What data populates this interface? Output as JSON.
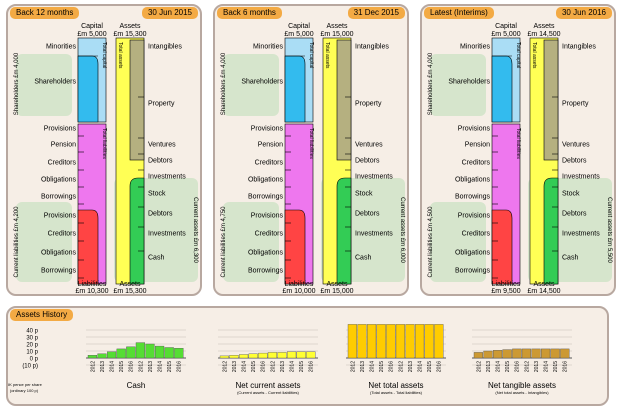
{
  "panels": [
    {
      "period": "Back 12 months",
      "date": "30 Jun 2015",
      "capital_label": "Capital",
      "capital_amount": "£m 5,000",
      "assets_label": "Assets",
      "assets_amount": "£m 15,300",
      "liabilities_label": "Liabilities",
      "liabilities_amount": "£m 10,300",
      "assets_bottom_label": "Assets",
      "assets_bottom_amount": "£m 15,300",
      "shareholders_axis": "Shareholders £m 4,000",
      "current_liabilities_axis": "Current liabilities £m 4,200",
      "current_assets_axis": "Current assets £m 6,300",
      "total_capital": "Total capital",
      "total_liabilities": "Total liabilities",
      "total_assets": "Total assets",
      "left_labels": [
        "Minorities",
        "Shareholders",
        "Provisions",
        "Pension",
        "Creditors",
        "Obligations",
        "Borrowings",
        "Provisions",
        "Creditors",
        "Obligations",
        "Borrowings"
      ],
      "right_labels": [
        "Intangibles",
        "Property",
        "Ventures",
        "Debtors",
        "Investments",
        "Stock",
        "Debtors",
        "Investments",
        "Cash"
      ]
    },
    {
      "period": "Back 6 months",
      "date": "31 Dec 2015",
      "capital_label": "Capital",
      "capital_amount": "£m 5,000",
      "assets_label": "Assets",
      "assets_amount": "£m 15,000",
      "liabilities_label": "Liabilities",
      "liabilities_amount": "£m 10,000",
      "assets_bottom_label": "Assets",
      "assets_bottom_amount": "£m 15,000",
      "shareholders_axis": "Shareholders £m 4,000",
      "current_liabilities_axis": "Current liabilities £m 4,750",
      "current_assets_axis": "Current assets £m 6,000",
      "total_capital": "Total capital",
      "total_liabilities": "Total liabilities",
      "total_assets": "Total assets",
      "left_labels": [
        "Minorities",
        "Shareholders",
        "Provisions",
        "Pension",
        "Creditors",
        "Obligations",
        "Borrowings",
        "Provisions",
        "Creditors",
        "Obligations",
        "Borrowings"
      ],
      "right_labels": [
        "Intangibles",
        "Property",
        "Ventures",
        "Debtors",
        "Investments",
        "Stock",
        "Debtors",
        "Investments",
        "Cash"
      ]
    },
    {
      "period": "Latest (Interims)",
      "date": "30 Jun 2016",
      "capital_label": "Capital",
      "capital_amount": "£m 5,000",
      "assets_label": "Assets",
      "assets_amount": "£m 14,500",
      "liabilities_label": "Liabilities",
      "liabilities_amount": "£m 9,500",
      "assets_bottom_label": "Assets",
      "assets_bottom_amount": "£m 14,500",
      "shareholders_axis": "Shareholders £m 4,000",
      "current_liabilities_axis": "Current liabilities £m 4,500",
      "current_assets_axis": "Current assets £m 5,500",
      "total_capital": "Total capital",
      "total_liabilities": "Total liabilities",
      "total_assets": "Total assets",
      "left_labels": [
        "Minorities",
        "Shareholders",
        "Provisions",
        "Pension",
        "Creditors",
        "Obligations",
        "Borrowings",
        "Provisions",
        "Creditors",
        "Obligations",
        "Borrowings"
      ],
      "right_labels": [
        "Intangibles",
        "Property",
        "Ventures",
        "Debtors",
        "Investments",
        "Stock",
        "Debtors",
        "Investments",
        "Cash"
      ]
    }
  ],
  "history": {
    "title": "Assets History",
    "y_ticks": [
      "40 p",
      "30 p",
      "20 p",
      "10 p",
      "0 p",
      "(10 p)"
    ],
    "footnote_line1": "UK pence per share",
    "footnote_line2": "(ordinary 100 p)"
  },
  "colors": {
    "capital": "#33bbee",
    "capital_light": "#aaddf5",
    "liabilities": "#ee77ee",
    "liab_current": "#ff4444",
    "assets": "#ffff55",
    "assets_current": "#33cc55",
    "green_zone": "#d6e5cc",
    "panel_bg": "#f6eee6",
    "header": "#f3aa44"
  },
  "chart_data": [
    {
      "type": "bar",
      "title": "Cash",
      "subtitle": "",
      "categories": [
        "2012",
        "2013",
        "2014",
        "2015",
        "2016",
        "2012",
        "2013",
        "2014",
        "2015",
        "2016"
      ],
      "values": [
        4,
        6,
        9,
        13,
        16,
        22,
        20,
        17,
        15,
        14
      ],
      "ylim": [
        -10,
        40
      ],
      "color": "#55dd33"
    },
    {
      "type": "bar",
      "title": "Net current assets",
      "subtitle": "(Current assets - Current liabilities)",
      "categories": [
        "2012",
        "2013",
        "2014",
        "2015",
        "2016",
        "2012",
        "2013",
        "2014",
        "2015",
        "2016"
      ],
      "values": [
        3,
        4,
        5,
        6,
        7,
        8,
        8,
        9,
        9,
        9
      ],
      "ylim": [
        -10,
        40
      ],
      "color": "#ffff33"
    },
    {
      "type": "bar",
      "title": "Net total assets",
      "subtitle": "(Total assets - Total liabilities)",
      "categories": [
        "2012",
        "2013",
        "2014",
        "2015",
        "2016",
        "2012",
        "2013",
        "2014",
        "2015",
        "2016"
      ],
      "values": [
        48,
        48,
        48,
        48,
        48,
        48,
        48,
        48,
        48,
        48
      ],
      "ylim": [
        -10,
        40
      ],
      "color": "#ffcc00"
    },
    {
      "type": "bar",
      "title": "Net tangible assets",
      "subtitle": "(Net total assets - Intangibles)",
      "categories": [
        "2012",
        "2013",
        "2014",
        "2015",
        "2016",
        "2012",
        "2013",
        "2014",
        "2015",
        "2016"
      ],
      "values": [
        8,
        10,
        11,
        12,
        13,
        13,
        13,
        13,
        13,
        13
      ],
      "ylim": [
        -10,
        40
      ],
      "color": "#cc9933"
    }
  ]
}
